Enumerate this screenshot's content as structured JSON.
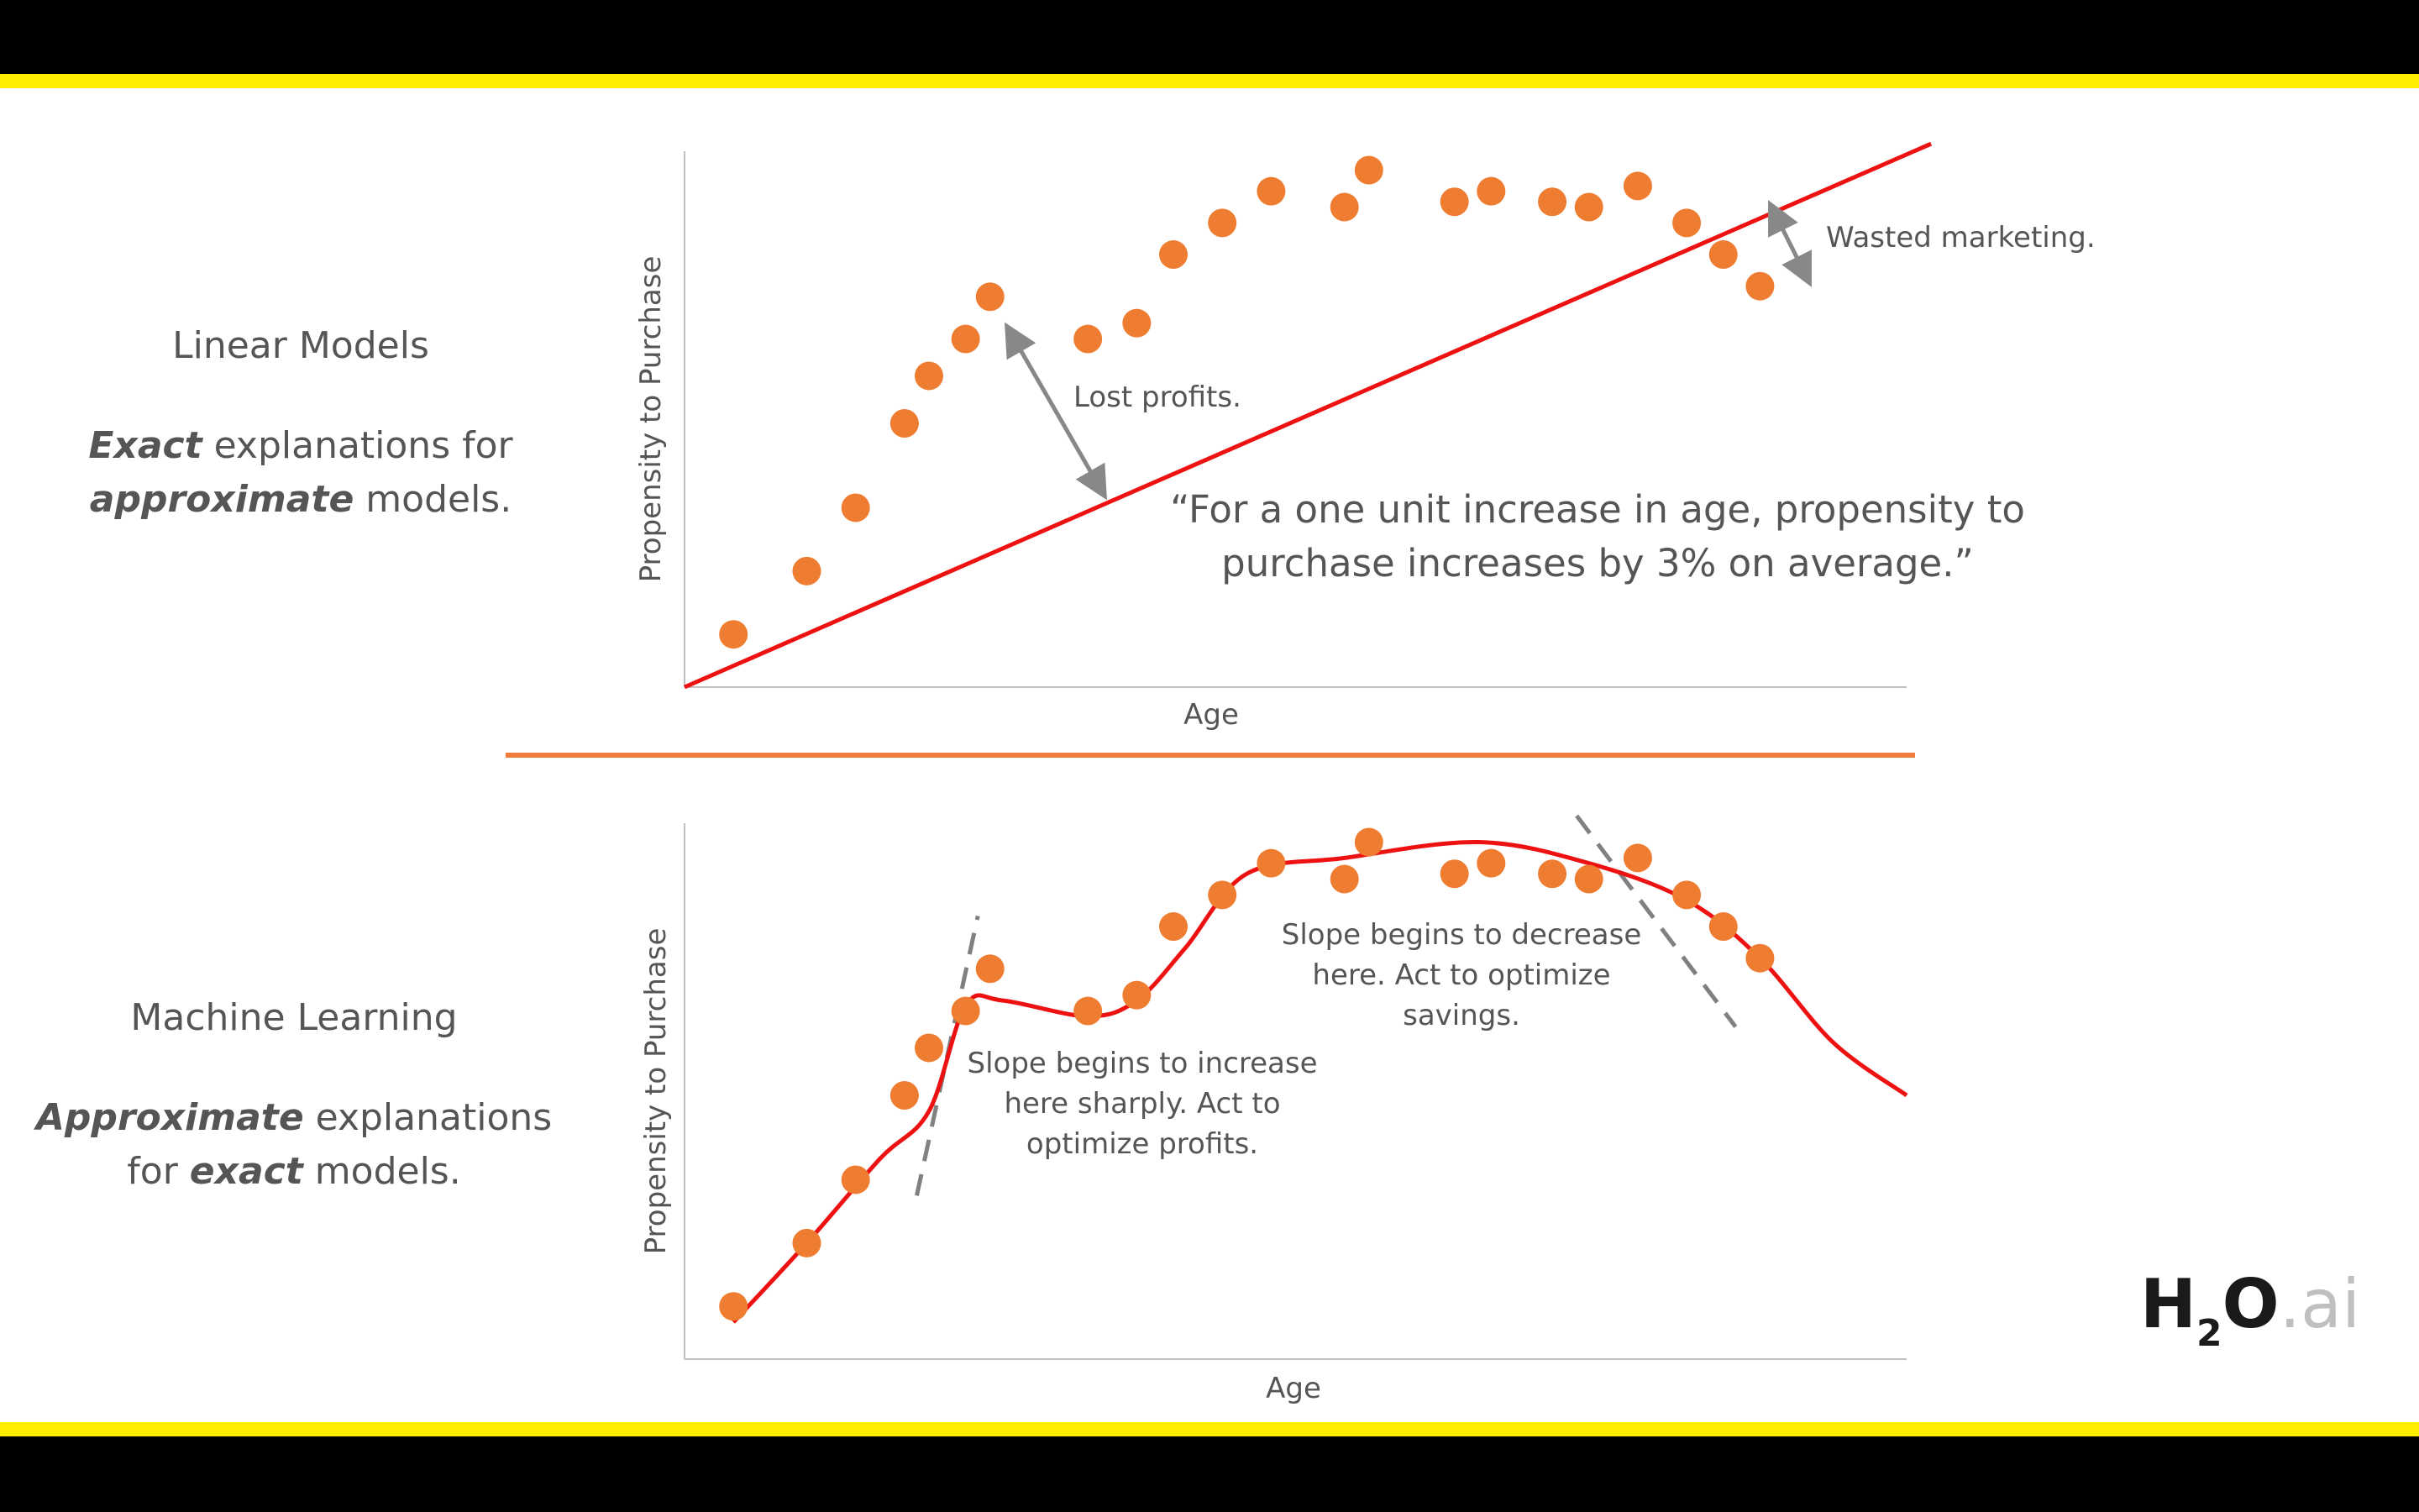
{
  "colors": {
    "frame": "#000000",
    "stripe": "#ffee00",
    "dot": "#ee7d31",
    "fit_line": "#ee1111",
    "divider": "#f07c3c",
    "annotation": "#888888",
    "text": "#555555"
  },
  "left_top": {
    "heading": "Linear Models",
    "line1_bold": "Exact",
    "line1_rest": " explanations for",
    "line2_bold": "approximate",
    "line2_rest": " models."
  },
  "left_bottom": {
    "heading": "Machine Learning",
    "line1_bold": "Approximate",
    "line1_rest": " explanations",
    "line2_pre": "for ",
    "line2_bold": "exact",
    "line2_rest": " models."
  },
  "logo": {
    "main": "H",
    "sub": "2",
    "o": "O",
    "ai": ".ai"
  },
  "chart_data": [
    {
      "type": "scatter",
      "xlabel": "Age",
      "ylabel": "Propensity to Purchase",
      "xlim": [
        0,
        100
      ],
      "ylim": [
        0,
        100
      ],
      "grid": false,
      "points": [
        {
          "x": 4,
          "y": 10
        },
        {
          "x": 10,
          "y": 22
        },
        {
          "x": 14,
          "y": 34
        },
        {
          "x": 18,
          "y": 50
        },
        {
          "x": 20,
          "y": 59
        },
        {
          "x": 23,
          "y": 66
        },
        {
          "x": 25,
          "y": 74
        },
        {
          "x": 33,
          "y": 66
        },
        {
          "x": 37,
          "y": 69
        },
        {
          "x": 40,
          "y": 82
        },
        {
          "x": 44,
          "y": 88
        },
        {
          "x": 48,
          "y": 94
        },
        {
          "x": 54,
          "y": 91
        },
        {
          "x": 56,
          "y": 98
        },
        {
          "x": 63,
          "y": 92
        },
        {
          "x": 66,
          "y": 94
        },
        {
          "x": 71,
          "y": 92
        },
        {
          "x": 74,
          "y": 91
        },
        {
          "x": 78,
          "y": 95
        },
        {
          "x": 82,
          "y": 88
        },
        {
          "x": 85,
          "y": 82
        },
        {
          "x": 88,
          "y": 76
        }
      ],
      "fit": {
        "type": "linear",
        "points": [
          {
            "x": 0,
            "y": 0
          },
          {
            "x": 102,
            "y": 103
          }
        ]
      },
      "annotations": {
        "lost": "Lost profits.",
        "wasted": "Wasted marketing.",
        "quote_line1": "“For a one unit increase in age, propensity to",
        "quote_line2": "purchase increases by 3% on average.”"
      }
    },
    {
      "type": "scatter",
      "xlabel": "Age",
      "ylabel": "Propensity to Purchase",
      "xlim": [
        0,
        100
      ],
      "ylim": [
        0,
        100
      ],
      "grid": false,
      "points": [
        {
          "x": 4,
          "y": 10
        },
        {
          "x": 10,
          "y": 22
        },
        {
          "x": 14,
          "y": 34
        },
        {
          "x": 18,
          "y": 50
        },
        {
          "x": 20,
          "y": 59
        },
        {
          "x": 23,
          "y": 66
        },
        {
          "x": 25,
          "y": 74
        },
        {
          "x": 33,
          "y": 66
        },
        {
          "x": 37,
          "y": 69
        },
        {
          "x": 40,
          "y": 82
        },
        {
          "x": 44,
          "y": 88
        },
        {
          "x": 48,
          "y": 94
        },
        {
          "x": 54,
          "y": 91
        },
        {
          "x": 56,
          "y": 98
        },
        {
          "x": 63,
          "y": 92
        },
        {
          "x": 66,
          "y": 94
        },
        {
          "x": 71,
          "y": 92
        },
        {
          "x": 74,
          "y": 91
        },
        {
          "x": 78,
          "y": 95
        },
        {
          "x": 82,
          "y": 88
        },
        {
          "x": 85,
          "y": 82
        },
        {
          "x": 88,
          "y": 76
        }
      ],
      "fit": {
        "type": "nonlinear",
        "points": [
          {
            "x": 4,
            "y": 7
          },
          {
            "x": 10,
            "y": 22
          },
          {
            "x": 16,
            "y": 38
          },
          {
            "x": 20,
            "y": 47
          },
          {
            "x": 23,
            "y": 67
          },
          {
            "x": 26,
            "y": 68
          },
          {
            "x": 33,
            "y": 65
          },
          {
            "x": 37,
            "y": 68
          },
          {
            "x": 41,
            "y": 78
          },
          {
            "x": 46,
            "y": 92
          },
          {
            "x": 54,
            "y": 95
          },
          {
            "x": 65,
            "y": 98
          },
          {
            "x": 74,
            "y": 94
          },
          {
            "x": 82,
            "y": 87
          },
          {
            "x": 88,
            "y": 76
          },
          {
            "x": 94,
            "y": 60
          },
          {
            "x": 100,
            "y": 50
          }
        ]
      },
      "tangents": [
        {
          "points": [
            {
              "x": 19,
              "y": 31
            },
            {
              "x": 24,
              "y": 84
            }
          ]
        },
        {
          "points": [
            {
              "x": 73,
              "y": 103
            },
            {
              "x": 86,
              "y": 63
            }
          ]
        }
      ],
      "annotations": {
        "increase": [
          "Slope begins to increase",
          "here sharply. Act to",
          "optimize profits."
        ],
        "decrease": [
          "Slope begins to decrease",
          "here. Act to optimize",
          "savings."
        ]
      }
    }
  ]
}
